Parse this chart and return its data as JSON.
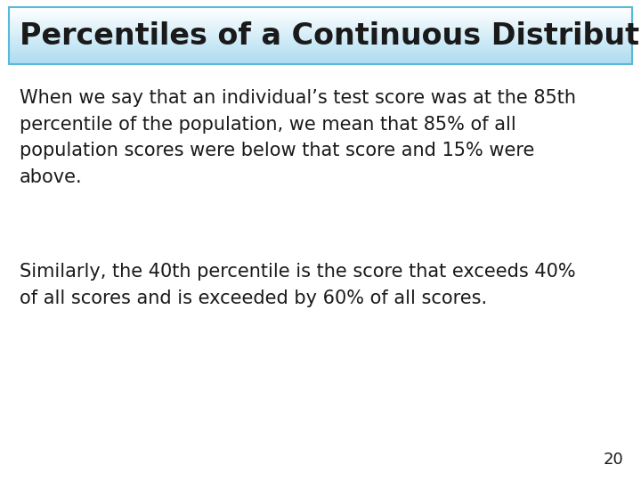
{
  "title": "Percentiles of a Continuous Distribution",
  "title_fontsize": 24,
  "title_color": "#1a1a1a",
  "title_bg_top": "#ffffff",
  "title_bg_bottom": "#aadcf0",
  "title_border_color": "#5ab8d8",
  "body_text_1": "When we say that an individual’s test score was at the 85th\npercentile of the population, we mean that 85% of all\npopulation scores were below that score and 15% were\nabove.",
  "body_text_2": "Similarly, the 40th percentile is the score that exceeds 40%\nof all scores and is exceeded by 60% of all scores.",
  "body_fontsize": 15,
  "body_color": "#1a1a1a",
  "page_number": "20",
  "page_number_fontsize": 13,
  "background_color": "#ffffff",
  "fig_width": 7.2,
  "fig_height": 5.4,
  "dpi": 100
}
